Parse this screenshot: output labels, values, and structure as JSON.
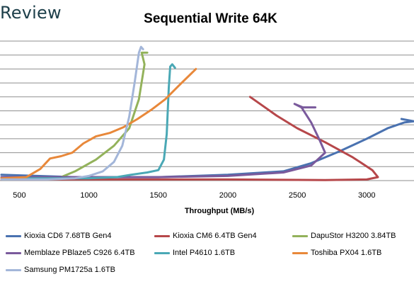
{
  "brand": {
    "text": "Review"
  },
  "chart_data": {
    "type": "line",
    "title": "Sequential Write 64K",
    "xlabel": "Throughput (MB/s)",
    "ylabel": "",
    "xlim": [
      360,
      3340
    ],
    "x_ticks": [
      500,
      1000,
      1500,
      2000,
      2500,
      3000
    ],
    "x_tick_labels": [
      "500",
      "1000",
      "1500",
      "2000",
      "2500",
      "3000"
    ],
    "y_gridlines": 10,
    "grid": true,
    "legend_position": "bottom",
    "series": [
      {
        "name": "Kioxia CD6 7.68TB Gen4",
        "color": "#4a72b0",
        "points": [
          [
            370,
            0.5
          ],
          [
            900,
            0.3
          ],
          [
            1500,
            0.3
          ],
          [
            2000,
            0.5
          ],
          [
            2400,
            0.8
          ],
          [
            2600,
            1.5
          ],
          [
            2800,
            2.5
          ],
          [
            3000,
            3.6
          ],
          [
            3150,
            4.5
          ],
          [
            3270,
            5.0
          ],
          [
            3340,
            5.1
          ],
          [
            3250,
            5.3
          ]
        ]
      },
      {
        "name": "Kioxia CM6 6.4TB Gen4",
        "color": "#b6474a",
        "points": [
          [
            370,
            0.1
          ],
          [
            1000,
            0.1
          ],
          [
            2000,
            0.1
          ],
          [
            2700,
            0.05
          ],
          [
            3000,
            0.1
          ],
          [
            3080,
            0.3
          ],
          [
            3040,
            0.9
          ],
          [
            2900,
            2.0
          ],
          [
            2700,
            3.3
          ],
          [
            2500,
            4.5
          ],
          [
            2350,
            5.6
          ],
          [
            2160,
            7.2
          ]
        ]
      },
      {
        "name": "DapuStor H3200 3.84TB",
        "color": "#93b25b",
        "points": [
          [
            380,
            0.1
          ],
          [
            780,
            0.2
          ],
          [
            900,
            0.8
          ],
          [
            1050,
            1.8
          ],
          [
            1180,
            3.0
          ],
          [
            1290,
            4.5
          ],
          [
            1360,
            7.0
          ],
          [
            1400,
            10.0
          ],
          [
            1380,
            11.0
          ],
          [
            1420,
            11.0
          ]
        ]
      },
      {
        "name": "Memblaze PBlaze5 C926 6.4TB",
        "color": "#7a5a9c",
        "points": [
          [
            370,
            0.3
          ],
          [
            1000,
            0.3
          ],
          [
            1500,
            0.3
          ],
          [
            2000,
            0.4
          ],
          [
            2400,
            0.7
          ],
          [
            2600,
            1.3
          ],
          [
            2700,
            2.4
          ],
          [
            2660,
            3.5
          ],
          [
            2600,
            5.0
          ],
          [
            2530,
            6.3
          ],
          [
            2480,
            6.6
          ],
          [
            2540,
            6.3
          ],
          [
            2630,
            6.3
          ]
        ]
      },
      {
        "name": "Intel P4610 1.6TB",
        "color": "#4aa8b5",
        "points": [
          [
            380,
            0.2
          ],
          [
            1000,
            0.2
          ],
          [
            1200,
            0.3
          ],
          [
            1300,
            0.5
          ],
          [
            1420,
            0.7
          ],
          [
            1500,
            0.9
          ],
          [
            1540,
            1.8
          ],
          [
            1560,
            4.0
          ],
          [
            1575,
            8.0
          ],
          [
            1585,
            9.8
          ],
          [
            1600,
            10.0
          ],
          [
            1620,
            9.7
          ]
        ]
      },
      {
        "name": "Toshiba PX04 1.6TB",
        "color": "#e8883a",
        "points": [
          [
            370,
            0.2
          ],
          [
            550,
            0.3
          ],
          [
            650,
            1.0
          ],
          [
            720,
            1.9
          ],
          [
            800,
            2.1
          ],
          [
            880,
            2.4
          ],
          [
            960,
            3.2
          ],
          [
            1050,
            3.8
          ],
          [
            1150,
            4.1
          ],
          [
            1250,
            4.6
          ],
          [
            1350,
            5.3
          ],
          [
            1450,
            6.1
          ],
          [
            1550,
            7.0
          ],
          [
            1650,
            8.2
          ],
          [
            1770,
            9.6
          ]
        ]
      },
      {
        "name": "Samsung PM1725a 1.6TB",
        "color": "#a3b6d9",
        "points": [
          [
            370,
            0.1
          ],
          [
            700,
            0.1
          ],
          [
            900,
            0.2
          ],
          [
            1000,
            0.4
          ],
          [
            1100,
            0.8
          ],
          [
            1180,
            1.6
          ],
          [
            1240,
            3.0
          ],
          [
            1290,
            5.5
          ],
          [
            1330,
            8.5
          ],
          [
            1360,
            11.0
          ],
          [
            1375,
            11.5
          ],
          [
            1390,
            11.3
          ]
        ]
      }
    ]
  }
}
